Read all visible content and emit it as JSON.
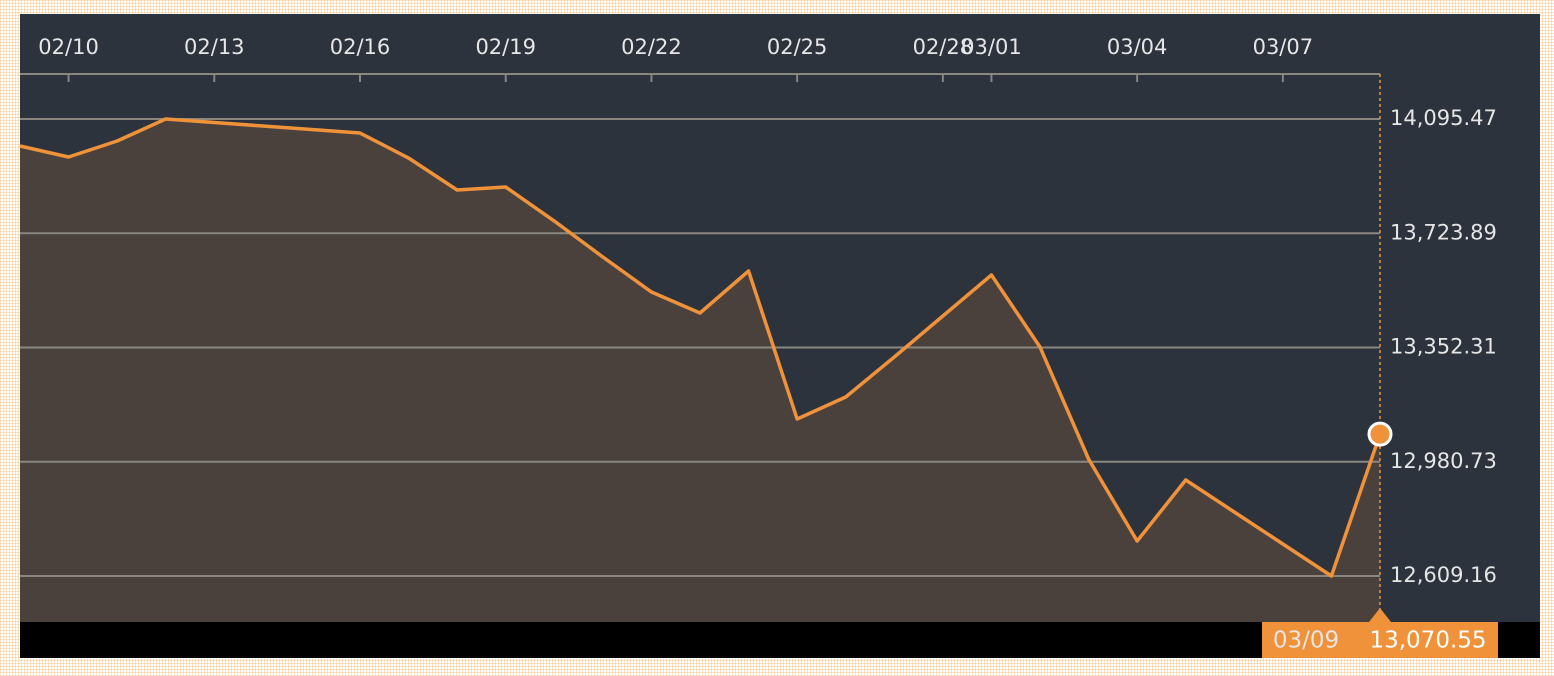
{
  "chart_data": {
    "type": "area",
    "categories": [
      null,
      "02/10",
      null,
      null,
      "02/13",
      null,
      null,
      "02/16",
      null,
      null,
      "02/19",
      null,
      null,
      "02/22",
      null,
      null,
      "02/25",
      null,
      null,
      "02/28",
      "03/01",
      null,
      null,
      "03/04",
      null,
      null,
      "03/07",
      null,
      null
    ],
    "series": [
      {
        "color": "#f0923a",
        "fill": "#4a413d",
        "values": [
          14007.6,
          13971.9,
          14023.9,
          14095.5,
          14084.1,
          14072.7,
          14061.3,
          14049.9,
          13968.6,
          13864.6,
          13874.3,
          13763.7,
          13646.6,
          13532.8,
          13464.5,
          13601.1,
          13119.8,
          13191.3,
          13321.4,
          13454.8,
          13588.1,
          13353.9,
          12989.7,
          12723.0,
          12921.4,
          12817.3,
          12713.3,
          12609.2,
          13070.55
        ]
      }
    ],
    "ylim": [
      12459.55,
      14436.97
    ],
    "yticks": [
      {
        "value": 14095.47,
        "label": "14,095.47"
      },
      {
        "value": 13723.89,
        "label": "13,723.89"
      },
      {
        "value": 13352.31,
        "label": "13,352.31"
      },
      {
        "value": 12980.73,
        "label": "12,980.73"
      },
      {
        "value": 12609.16,
        "label": "12,609.16"
      }
    ],
    "grid": true,
    "tooltip": {
      "label": "03/09",
      "value_label": "13,070.55"
    }
  }
}
